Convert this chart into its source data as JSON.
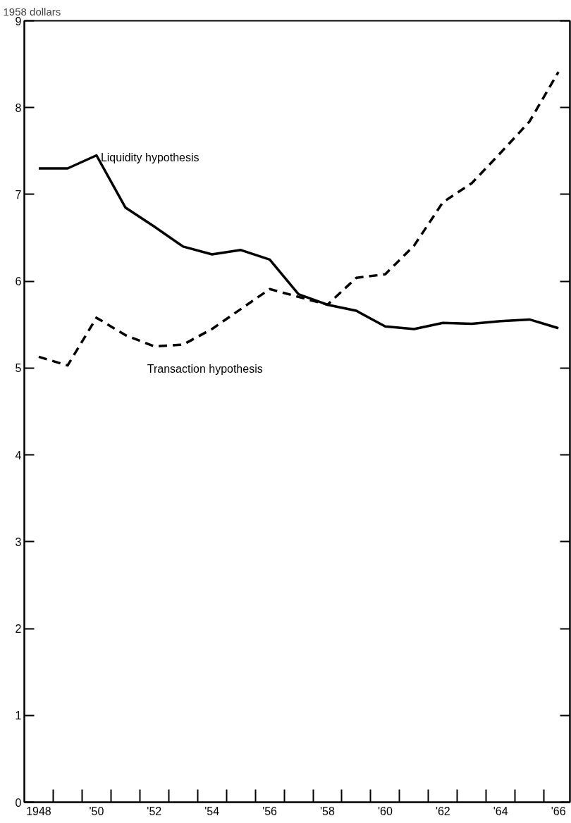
{
  "chart_data": {
    "type": "line",
    "ylabel": "1958 dollars",
    "x": [
      1948,
      1949,
      1950,
      1951,
      1952,
      1953,
      1954,
      1955,
      1956,
      1957,
      1958,
      1959,
      1960,
      1961,
      1962,
      1963,
      1964,
      1965,
      1966
    ],
    "series": [
      {
        "name": "Liquidity hypothesis",
        "color": "#000000",
        "line_style": "solid",
        "values": [
          7.3,
          7.3,
          7.45,
          6.85,
          6.63,
          6.4,
          6.31,
          6.36,
          6.25,
          5.85,
          5.73,
          5.66,
          5.48,
          5.45,
          5.52,
          5.51,
          5.54,
          5.56,
          5.46
        ]
      },
      {
        "name": "Transaction hypothesis",
        "color": "#000000",
        "line_style": "dashed",
        "values": [
          5.13,
          5.03,
          5.58,
          5.38,
          5.25,
          5.27,
          5.45,
          5.68,
          5.91,
          5.82,
          5.73,
          6.04,
          6.08,
          6.41,
          6.91,
          7.13,
          7.48,
          7.84,
          8.41
        ]
      }
    ],
    "xlim": [
      1947.5,
      1966.4
    ],
    "ylim": [
      0,
      9
    ],
    "xticks": [
      {
        "value": 1948,
        "label": "1948"
      },
      {
        "value": 1950,
        "label": "'50"
      },
      {
        "value": 1952,
        "label": "'52"
      },
      {
        "value": 1954,
        "label": "'54"
      },
      {
        "value": 1956,
        "label": "'56"
      },
      {
        "value": 1958,
        "label": "'58"
      },
      {
        "value": 1960,
        "label": "'60"
      },
      {
        "value": 1962,
        "label": "'62"
      },
      {
        "value": 1964,
        "label": "'64"
      },
      {
        "value": 1966,
        "label": "'66"
      }
    ],
    "yticks": [
      0,
      1,
      2,
      3,
      4,
      5,
      6,
      7,
      8,
      9
    ],
    "grid": false
  }
}
